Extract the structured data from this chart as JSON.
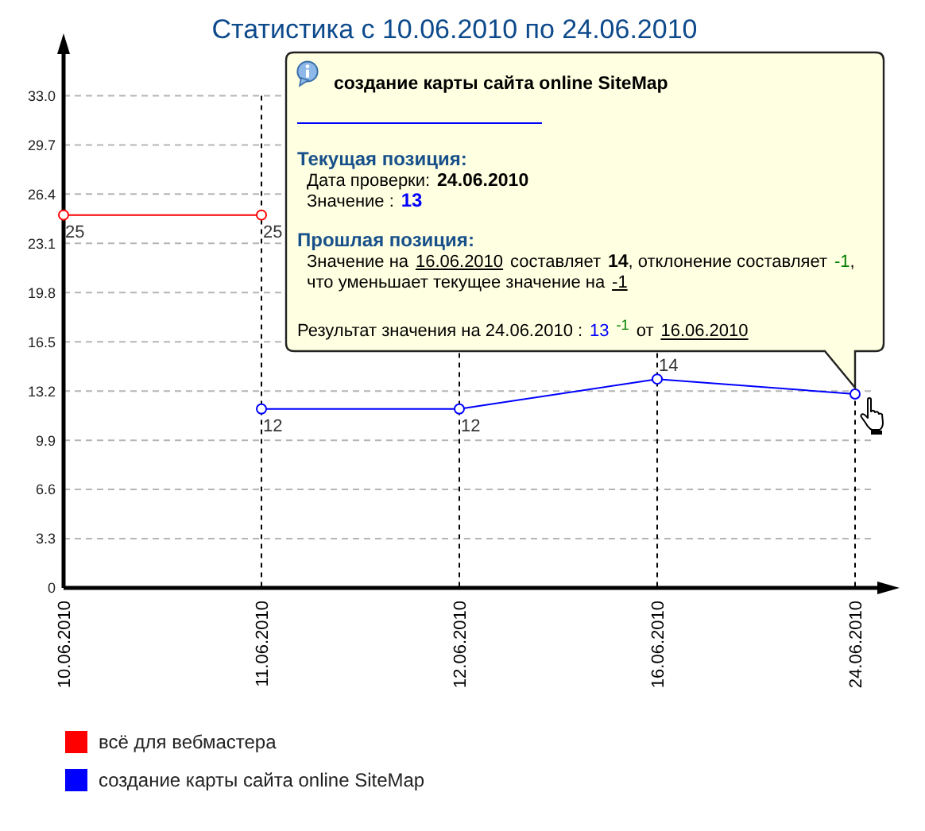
{
  "chart_data": {
    "type": "line",
    "title": "Статистика с 10.06.2010 по 24.06.2010",
    "categories": [
      "10.06.2010",
      "11.06.2010",
      "12.06.2010",
      "16.06.2010",
      "24.06.2010"
    ],
    "series": [
      {
        "name": "всё для вебмастера",
        "color": "#ff0000",
        "values": [
          25,
          25,
          null,
          null,
          null
        ],
        "value_labels": [
          "25",
          "25",
          null,
          null,
          null
        ]
      },
      {
        "name": "создание карты сайта online SiteMap",
        "color": "#0000ff",
        "values": [
          null,
          12,
          12,
          14,
          13
        ],
        "value_labels": [
          null,
          "12",
          "12",
          "14",
          null
        ]
      }
    ],
    "ylim": [
      0,
      35.9
    ],
    "yticks": [
      0,
      3.3,
      6.6,
      9.9,
      13.2,
      16.5,
      19.8,
      23.1,
      26.4,
      29.7,
      {
        "value": 33,
        "label": "33.0"
      }
    ],
    "grid": true,
    "legend": "bottom left",
    "marker": "circle",
    "annotations": [
      "создание карты сайта online SiteMap",
      "Текущая позиция:",
      "Дата проверки:",
      "24.06.2010",
      "Значение :",
      "13",
      "Прошлая позиция:",
      "Значение на",
      "16.06.2010",
      "составляет",
      "14",
      ", отклонение составляет",
      "-1",
      ",",
      "что уменьшает текущее значение на",
      "-1",
      "Результат значения на 24.06.2010 :",
      "13",
      "$^{-1}$",
      "от",
      "16.06.2010"
    ]
  }
}
